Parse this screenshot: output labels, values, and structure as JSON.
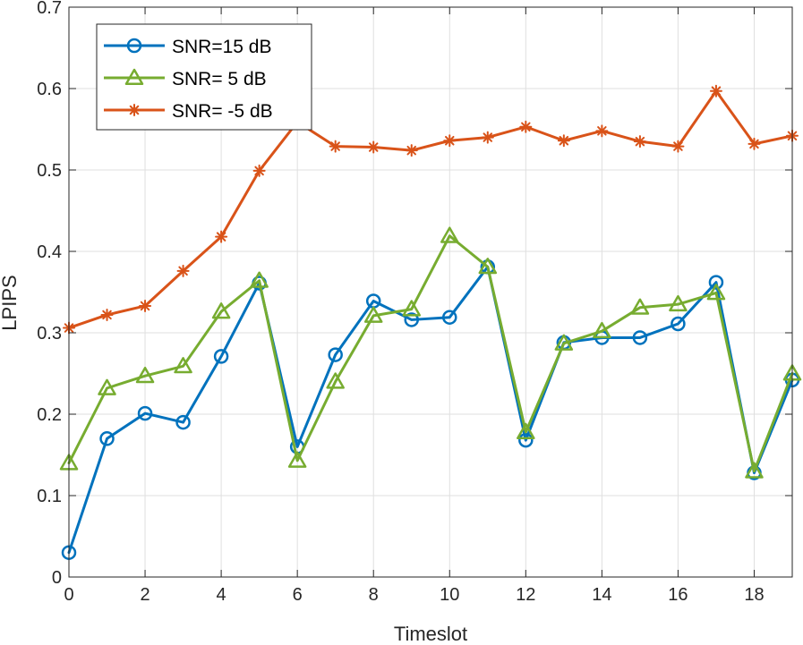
{
  "chart_data": {
    "type": "line",
    "title": "",
    "xlabel": "Timeslot",
    "ylabel": "LPIPS",
    "xlim": [
      0,
      19
    ],
    "ylim": [
      0,
      0.7
    ],
    "xticks": [
      0,
      2,
      4,
      6,
      8,
      10,
      12,
      14,
      16,
      18
    ],
    "yticks": [
      0,
      0.1,
      0.2,
      0.3,
      0.4,
      0.5,
      0.6,
      0.7
    ],
    "xtick_labels": [
      "0",
      "2",
      "4",
      "6",
      "8",
      "10",
      "12",
      "14",
      "16",
      "18"
    ],
    "ytick_labels": [
      "0",
      "0.1",
      "0.2",
      "0.3",
      "0.4",
      "0.5",
      "0.6",
      "0.7"
    ],
    "grid": true,
    "legend_position": "top-left",
    "x": [
      0,
      1,
      2,
      3,
      4,
      5,
      6,
      7,
      8,
      9,
      10,
      11,
      12,
      13,
      14,
      15,
      16,
      17,
      18,
      19
    ],
    "series": [
      {
        "name": "SNR=15 dB",
        "color": "#0072BD",
        "marker": "circle",
        "values": [
          0.03,
          0.17,
          0.201,
          0.19,
          0.271,
          0.361,
          0.16,
          0.273,
          0.339,
          0.316,
          0.319,
          0.381,
          0.168,
          0.288,
          0.294,
          0.294,
          0.311,
          0.362,
          0.128,
          0.242
        ]
      },
      {
        "name": "SNR= 5 dB",
        "color": "#77AC30",
        "marker": "triangle",
        "values": [
          0.14,
          0.232,
          0.247,
          0.259,
          0.326,
          0.364,
          0.143,
          0.24,
          0.321,
          0.329,
          0.419,
          0.381,
          0.178,
          0.287,
          0.302,
          0.331,
          0.335,
          0.349,
          0.13,
          0.25
        ]
      },
      {
        "name": "SNR= -5 dB",
        "color": "#D95319",
        "marker": "asterisk",
        "values": [
          0.306,
          0.322,
          0.333,
          0.376,
          0.418,
          0.499,
          0.559,
          0.529,
          0.528,
          0.524,
          0.536,
          0.54,
          0.553,
          0.536,
          0.548,
          0.535,
          0.529,
          0.597,
          0.532,
          0.542
        ]
      }
    ]
  }
}
